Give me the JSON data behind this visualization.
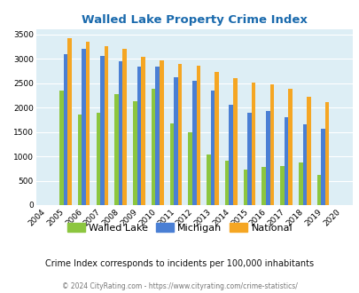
{
  "title": "Walled Lake Property Crime Index",
  "subtitle": "Crime Index corresponds to incidents per 100,000 inhabitants",
  "footer": "© 2024 CityRating.com - https://www.cityrating.com/crime-statistics/",
  "years": [
    2004,
    2005,
    2006,
    2007,
    2008,
    2009,
    2010,
    2011,
    2012,
    2013,
    2014,
    2015,
    2016,
    2017,
    2018,
    2019,
    2020
  ],
  "walled_lake": [
    0,
    2350,
    1850,
    1900,
    2270,
    2130,
    2380,
    1680,
    1490,
    1040,
    910,
    730,
    775,
    800,
    880,
    620,
    0
  ],
  "michigan": [
    0,
    3100,
    3200,
    3060,
    2940,
    2830,
    2830,
    2620,
    2540,
    2340,
    2060,
    1900,
    1930,
    1800,
    1650,
    1570,
    0
  ],
  "national": [
    0,
    3420,
    3340,
    3260,
    3200,
    3040,
    2960,
    2900,
    2860,
    2730,
    2600,
    2510,
    2480,
    2380,
    2210,
    2110,
    0
  ],
  "bar_colors": {
    "walled_lake": "#8cc63f",
    "michigan": "#4a7fd4",
    "national": "#f5a623"
  },
  "ylim": [
    0,
    3600
  ],
  "yticks": [
    0,
    500,
    1000,
    1500,
    2000,
    2500,
    3000,
    3500
  ],
  "plot_bg": "#ddeef5",
  "title_color": "#1a6aad",
  "subtitle_color": "#111111",
  "footer_color": "#777777",
  "bar_width": 0.22,
  "legend_labels": [
    "Walled Lake",
    "Michigan",
    "National"
  ]
}
